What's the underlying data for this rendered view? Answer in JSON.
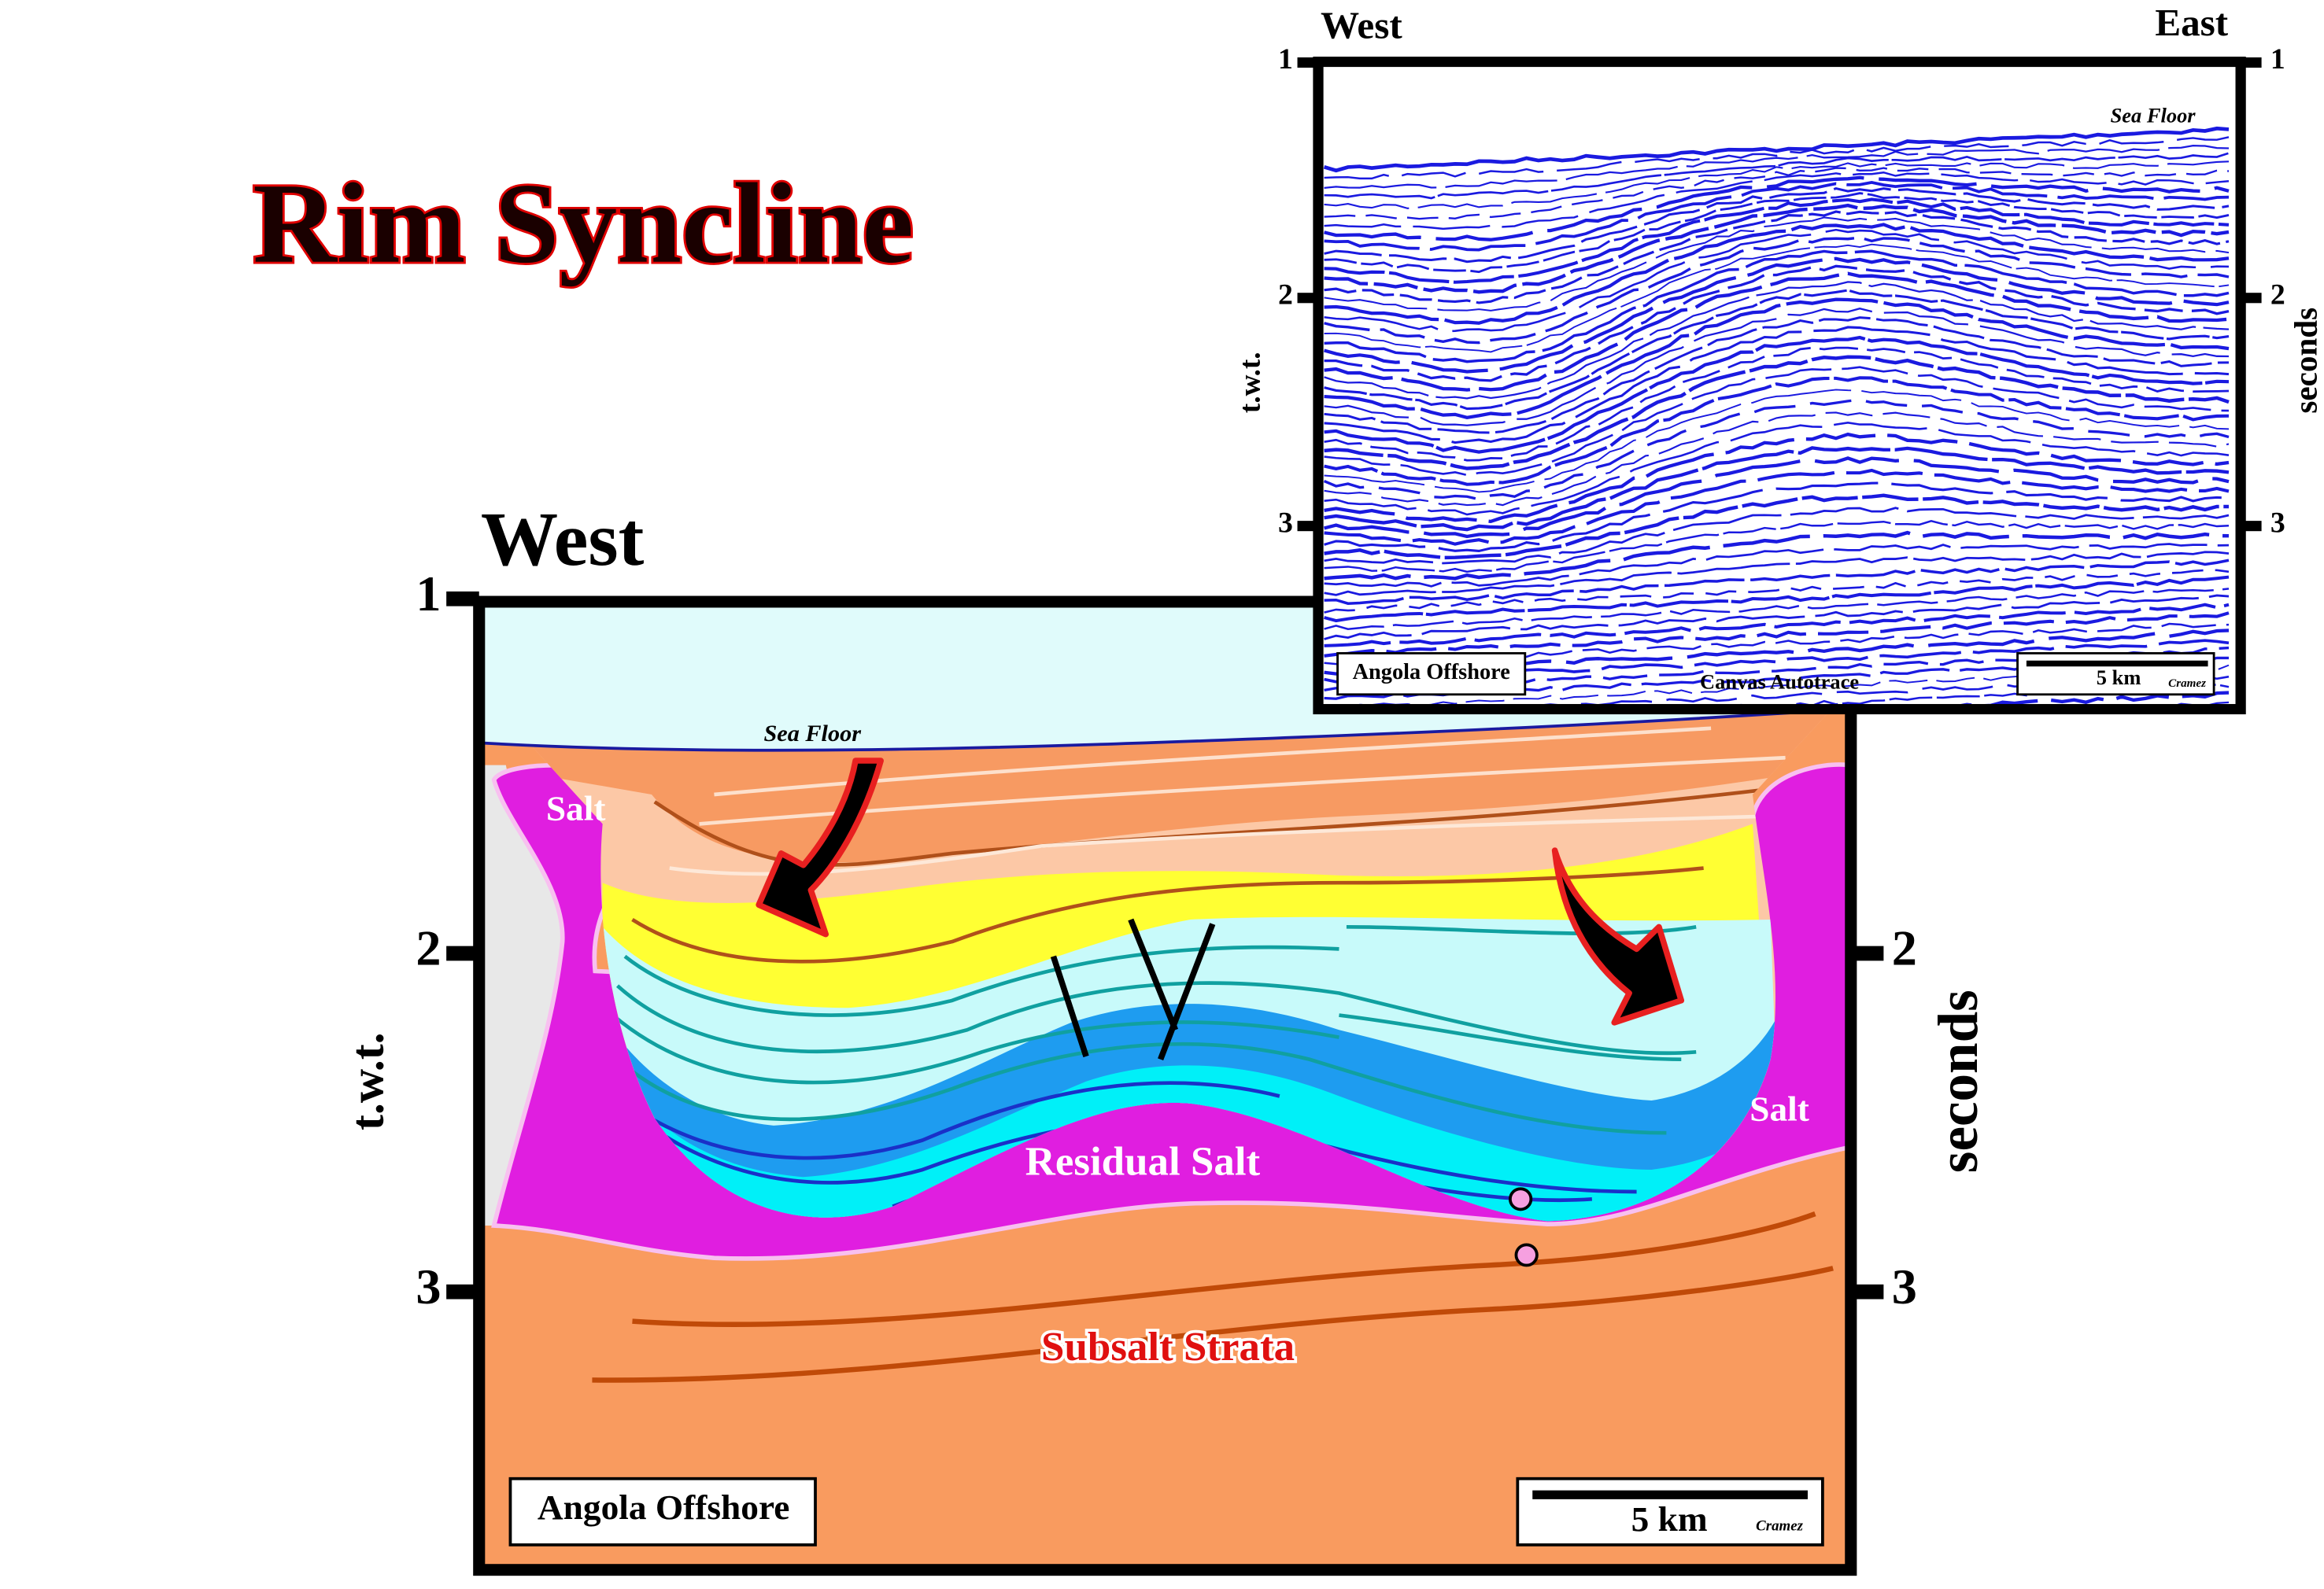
{
  "title": "Rim Syncline",
  "interpretation": {
    "direction": "West",
    "axis_left": {
      "label": "t.w.t.",
      "ticks": [
        "1",
        "2",
        "3"
      ]
    },
    "axis_right": {
      "label": "seconds",
      "ticks": [
        "2",
        "3"
      ]
    },
    "sea_floor": "Sea Floor",
    "salt_left": "Salt",
    "salt_right": "Salt",
    "residual_salt": "Residual Salt",
    "subsalt": "Subsalt Strata",
    "location": "Angola Offshore",
    "scale": "5 km",
    "author": "Cramez"
  },
  "seismic": {
    "west": "West",
    "east": "East",
    "axis_left": {
      "label": "t.w.t.",
      "ticks": [
        "1",
        "2",
        "3"
      ]
    },
    "axis_right": {
      "label": "seconds",
      "ticks": [
        "1",
        "2",
        "3"
      ]
    },
    "sea_floor": "Sea Floor",
    "location": "Angola Offshore",
    "processing": "Canvas Autotrace",
    "scale": "5 km",
    "author": "Cramez"
  }
}
